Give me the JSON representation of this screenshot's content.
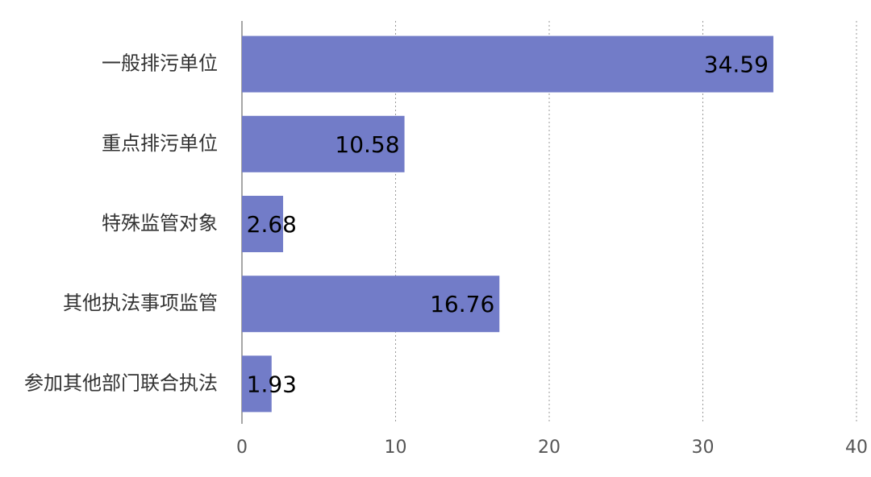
{
  "chart_data": {
    "type": "barh",
    "categories": [
      "一般排污单位",
      "重点排污单位",
      "特殊监管对象",
      "其他执法事项监管",
      "参加其他部门联合执法"
    ],
    "values": [
      34.59,
      10.58,
      2.68,
      16.76,
      1.93
    ],
    "color": "#727cc8",
    "xlim": [
      0,
      40
    ],
    "xticks": [
      0,
      10,
      20,
      30,
      40
    ],
    "grid": true
  }
}
